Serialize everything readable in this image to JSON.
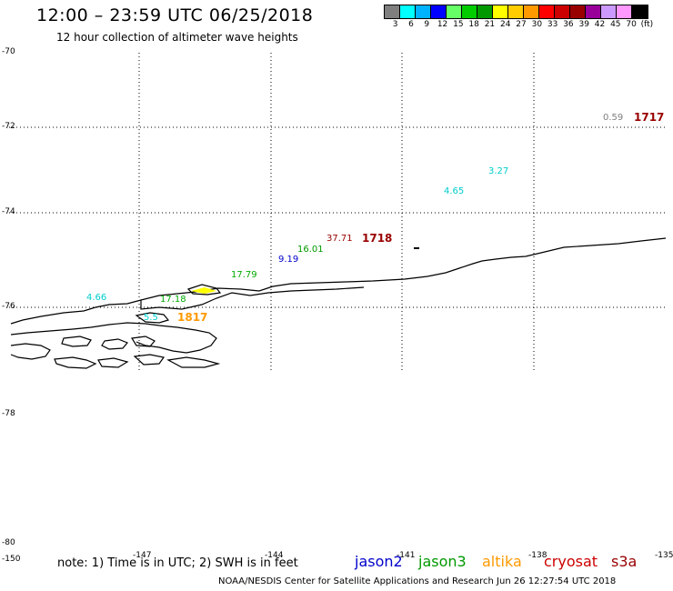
{
  "title": "12:00 – 23:59 UTC 06/25/2018",
  "subtitle": "12 hour collection of altimeter wave heights",
  "colorbar": {
    "colors": [
      "#7f7f7f",
      "#00ffff",
      "#00b2ff",
      "#0000ff",
      "#66ff66",
      "#00cc00",
      "#009900",
      "#ffff00",
      "#ffcc00",
      "#ff9900",
      "#ff0000",
      "#cc0000",
      "#990000",
      "#990099",
      "#cc99ff",
      "#ff99ff",
      "#000000"
    ],
    "labels": [
      "3",
      "6",
      "9",
      "12",
      "15",
      "18",
      "21",
      "24",
      "27",
      "30",
      "33",
      "36",
      "39",
      "42",
      "45",
      "70",
      "(ft)"
    ]
  },
  "latitudes": [
    "-70",
    "-72",
    "-74",
    "-76",
    "-78",
    "-80"
  ],
  "longitudes": [
    "-150",
    "-147",
    "-144",
    "-141",
    "-138",
    "-135"
  ],
  "observations": [
    {
      "value": "0.59",
      "color": "#7f7f7f"
    },
    {
      "value": "3.27",
      "color": "#00cccc"
    },
    {
      "value": "4.65",
      "color": "#00cccc"
    },
    {
      "value": "37.71",
      "color": "#990000"
    },
    {
      "value": "16.01",
      "color": "#009900"
    },
    {
      "value": "9.19",
      "color": "#0000cc"
    },
    {
      "value": "17.79",
      "color": "#00aa00"
    },
    {
      "value": "17.18",
      "color": "#00aa00"
    },
    {
      "value": "4.66",
      "color": "#00cccc"
    },
    {
      "value": "5.5",
      "color": "#00cccc"
    }
  ],
  "times": [
    {
      "value": "1717",
      "color": "#990000"
    },
    {
      "value": "1718",
      "color": "#990000"
    },
    {
      "value": "1817",
      "color": "#ff9900"
    }
  ],
  "note": "note: 1) Time is in UTC; 2) SWH is in feet",
  "legend": [
    {
      "name": "jason2",
      "color": "#0000cc"
    },
    {
      "name": "jason3",
      "color": "#009900"
    },
    {
      "name": "altika",
      "color": "#ff9900"
    },
    {
      "name": "cryosat",
      "color": "#cc0000"
    },
    {
      "name": "s3a",
      "color": "#990000"
    }
  ],
  "footer": "NOAA/NESDIS Center for Satellite Applications and Research     Jun 26 12:27:54 UTC 2018"
}
